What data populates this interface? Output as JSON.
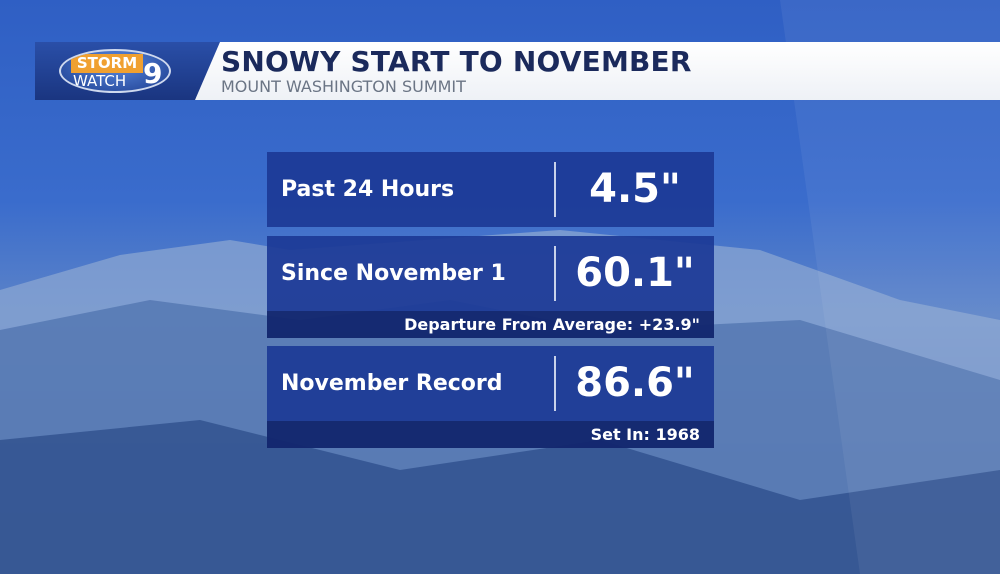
{
  "header": {
    "logo_text": "STORM WATCH 9",
    "title": "SNOWY START TO NOVEMBER",
    "subtitle": "MOUNT WASHINGTON SUMMIT"
  },
  "rows": [
    {
      "label": "Past 24 Hours",
      "value": "4.5\""
    },
    {
      "label": "Since November 1",
      "value": "60.1\"",
      "note": "Departure From Average: +23.9\""
    },
    {
      "label": "November Record",
      "value": "86.6\"",
      "note": "Set In: 1968"
    }
  ],
  "colors": {
    "panel": "#1c3a96",
    "strip": "#12266e",
    "title": "#1b2a5c",
    "logo_orange": "#f0a030"
  }
}
